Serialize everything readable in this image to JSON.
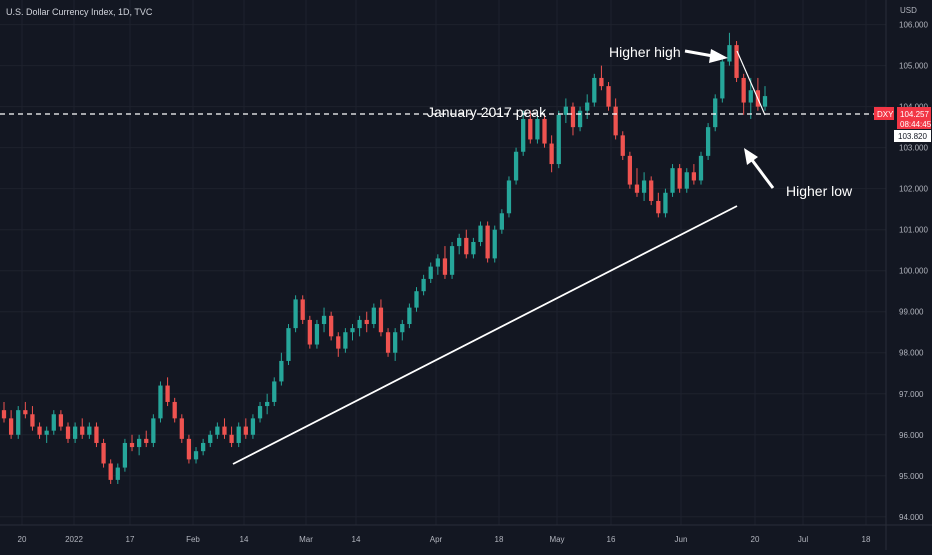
{
  "header": {
    "symbol_title": "U.S. Dollar Currency Index, 1D, TVC",
    "currency": "USD"
  },
  "price_badge": {
    "ticker": "DXY",
    "price": "104.257",
    "countdown": "08:44:45",
    "color": "#f23645"
  },
  "level_label": "103.820",
  "annotations": {
    "peak_text": "January 2017 peak",
    "higher_high_text": "Higher high",
    "higher_low_text": "Higher low"
  },
  "colors": {
    "background": "#131722",
    "up": "#26a69a",
    "down": "#ef5350",
    "grid": "#1e222d",
    "text": "#b2b5be"
  },
  "chart_data": {
    "type": "candlestick",
    "title": "U.S. Dollar Currency Index, 1D, TVC",
    "currency": "USD",
    "ylim": [
      93.8,
      106.6
    ],
    "y_ticks": [
      "94.000",
      "95.000",
      "96.000",
      "97.000",
      "98.000",
      "99.000",
      "100.000",
      "101.000",
      "102.000",
      "103.000",
      "104.000",
      "105.000",
      "106.000"
    ],
    "x_ticks": [
      "20",
      "2022",
      "17",
      "Feb",
      "14",
      "Mar",
      "14",
      "Apr",
      "18",
      "May",
      "16",
      "Jun",
      "20",
      "Jul",
      "18"
    ],
    "grid": true,
    "horizontal_line": {
      "value": 103.82,
      "style": "dashed",
      "label": "103.820"
    },
    "last_price": 104.257,
    "candles": [
      [
        96.6,
        96.8,
        96.3,
        96.4
      ],
      [
        96.4,
        96.6,
        95.9,
        96.0
      ],
      [
        96.0,
        96.7,
        95.9,
        96.6
      ],
      [
        96.6,
        96.8,
        96.4,
        96.5
      ],
      [
        96.5,
        96.7,
        96.1,
        96.2
      ],
      [
        96.2,
        96.3,
        95.9,
        96.0
      ],
      [
        96.0,
        96.2,
        95.8,
        96.1
      ],
      [
        96.1,
        96.6,
        96.0,
        96.5
      ],
      [
        96.5,
        96.6,
        96.1,
        96.2
      ],
      [
        96.2,
        96.3,
        95.8,
        95.9
      ],
      [
        95.9,
        96.3,
        95.8,
        96.2
      ],
      [
        96.2,
        96.4,
        95.9,
        96.0
      ],
      [
        96.0,
        96.3,
        95.9,
        96.2
      ],
      [
        96.2,
        96.3,
        95.7,
        95.8
      ],
      [
        95.8,
        95.9,
        95.2,
        95.3
      ],
      [
        95.3,
        95.4,
        94.8,
        94.9
      ],
      [
        94.9,
        95.3,
        94.8,
        95.2
      ],
      [
        95.2,
        95.9,
        95.1,
        95.8
      ],
      [
        95.8,
        96.0,
        95.6,
        95.7
      ],
      [
        95.7,
        96.0,
        95.5,
        95.9
      ],
      [
        95.9,
        96.1,
        95.7,
        95.8
      ],
      [
        95.8,
        96.5,
        95.7,
        96.4
      ],
      [
        96.4,
        97.3,
        96.3,
        97.2
      ],
      [
        97.2,
        97.4,
        96.7,
        96.8
      ],
      [
        96.8,
        96.9,
        96.3,
        96.4
      ],
      [
        96.4,
        96.5,
        95.8,
        95.9
      ],
      [
        95.9,
        96.0,
        95.3,
        95.4
      ],
      [
        95.4,
        95.7,
        95.3,
        95.6
      ],
      [
        95.6,
        95.9,
        95.5,
        95.8
      ],
      [
        95.8,
        96.1,
        95.7,
        96.0
      ],
      [
        96.0,
        96.3,
        95.9,
        96.2
      ],
      [
        96.2,
        96.4,
        95.9,
        96.0
      ],
      [
        96.0,
        96.2,
        95.7,
        95.8
      ],
      [
        95.8,
        96.3,
        95.7,
        96.2
      ],
      [
        96.2,
        96.4,
        95.9,
        96.0
      ],
      [
        96.0,
        96.5,
        95.9,
        96.4
      ],
      [
        96.4,
        96.8,
        96.3,
        96.7
      ],
      [
        96.7,
        97.0,
        96.5,
        96.8
      ],
      [
        96.8,
        97.4,
        96.7,
        97.3
      ],
      [
        97.3,
        98.0,
        97.2,
        97.8
      ],
      [
        97.8,
        98.7,
        97.7,
        98.6
      ],
      [
        98.6,
        99.4,
        98.5,
        99.3
      ],
      [
        99.3,
        99.4,
        98.7,
        98.8
      ],
      [
        98.8,
        98.9,
        98.1,
        98.2
      ],
      [
        98.2,
        98.8,
        98.1,
        98.7
      ],
      [
        98.7,
        99.1,
        98.5,
        98.9
      ],
      [
        98.9,
        99.0,
        98.3,
        98.4
      ],
      [
        98.4,
        98.5,
        97.9,
        98.1
      ],
      [
        98.1,
        98.6,
        98.0,
        98.5
      ],
      [
        98.5,
        98.7,
        98.3,
        98.6
      ],
      [
        98.6,
        98.9,
        98.4,
        98.8
      ],
      [
        98.8,
        99.0,
        98.5,
        98.7
      ],
      [
        98.7,
        99.2,
        98.6,
        99.1
      ],
      [
        99.1,
        99.3,
        98.4,
        98.5
      ],
      [
        98.5,
        98.6,
        97.9,
        98.0
      ],
      [
        98.0,
        98.6,
        97.8,
        98.5
      ],
      [
        98.5,
        98.8,
        98.3,
        98.7
      ],
      [
        98.7,
        99.2,
        98.6,
        99.1
      ],
      [
        99.1,
        99.6,
        99.0,
        99.5
      ],
      [
        99.5,
        99.9,
        99.4,
        99.8
      ],
      [
        99.8,
        100.2,
        99.7,
        100.1
      ],
      [
        100.1,
        100.4,
        99.9,
        100.3
      ],
      [
        100.3,
        100.6,
        99.8,
        99.9
      ],
      [
        99.9,
        100.7,
        99.8,
        100.6
      ],
      [
        100.6,
        100.9,
        100.4,
        100.8
      ],
      [
        100.8,
        101.0,
        100.3,
        100.4
      ],
      [
        100.4,
        100.8,
        100.3,
        100.7
      ],
      [
        100.7,
        101.2,
        100.6,
        101.1
      ],
      [
        101.1,
        101.2,
        100.2,
        100.3
      ],
      [
        100.3,
        101.1,
        100.2,
        101.0
      ],
      [
        101.0,
        101.5,
        100.9,
        101.4
      ],
      [
        101.4,
        102.3,
        101.3,
        102.2
      ],
      [
        102.2,
        103.0,
        102.1,
        102.9
      ],
      [
        102.9,
        103.9,
        102.8,
        103.7
      ],
      [
        103.7,
        103.9,
        103.1,
        103.2
      ],
      [
        103.2,
        103.8,
        103.1,
        103.7
      ],
      [
        103.7,
        103.8,
        103.0,
        103.1
      ],
      [
        103.1,
        103.3,
        102.4,
        102.6
      ],
      [
        102.6,
        103.9,
        102.5,
        103.8
      ],
      [
        103.8,
        104.2,
        103.6,
        104.0
      ],
      [
        104.0,
        104.1,
        103.3,
        103.5
      ],
      [
        103.5,
        104.0,
        103.4,
        103.9
      ],
      [
        103.9,
        104.3,
        103.7,
        104.1
      ],
      [
        104.1,
        104.8,
        104.0,
        104.7
      ],
      [
        104.7,
        105.0,
        104.4,
        104.5
      ],
      [
        104.5,
        104.6,
        103.9,
        104.0
      ],
      [
        104.0,
        104.2,
        103.2,
        103.3
      ],
      [
        103.3,
        103.4,
        102.7,
        102.8
      ],
      [
        102.8,
        102.9,
        102.0,
        102.1
      ],
      [
        102.1,
        102.5,
        101.8,
        101.9
      ],
      [
        101.9,
        102.4,
        101.7,
        102.2
      ],
      [
        102.2,
        102.3,
        101.6,
        101.7
      ],
      [
        101.7,
        101.9,
        101.3,
        101.4
      ],
      [
        101.4,
        102.0,
        101.3,
        101.9
      ],
      [
        101.9,
        102.6,
        101.8,
        102.5
      ],
      [
        102.5,
        102.6,
        101.9,
        102.0
      ],
      [
        102.0,
        102.5,
        101.9,
        102.4
      ],
      [
        102.4,
        102.6,
        102.1,
        102.2
      ],
      [
        102.2,
        102.9,
        102.1,
        102.8
      ],
      [
        102.8,
        103.6,
        102.7,
        103.5
      ],
      [
        103.5,
        104.3,
        103.4,
        104.2
      ],
      [
        104.2,
        105.2,
        104.1,
        105.1
      ],
      [
        105.1,
        105.8,
        105.0,
        105.5
      ],
      [
        105.5,
        105.6,
        104.6,
        104.7
      ],
      [
        104.7,
        104.8,
        103.8,
        104.1
      ],
      [
        104.1,
        104.7,
        103.7,
        104.4
      ],
      [
        104.4,
        104.7,
        103.9,
        104.0
      ],
      [
        104.0,
        104.5,
        103.9,
        104.257
      ]
    ]
  }
}
